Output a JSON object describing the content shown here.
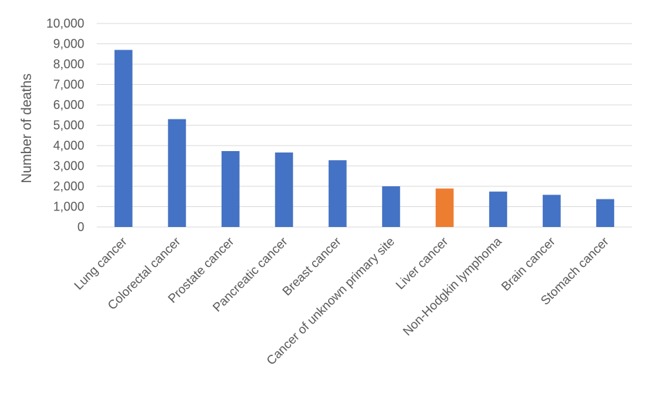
{
  "chart_data": {
    "type": "bar",
    "title": "",
    "xlabel": "",
    "ylabel": "Number of deaths",
    "ylim": [
      0,
      10000
    ],
    "yticks": [
      "0",
      "1,000",
      "2,000",
      "3,000",
      "4,000",
      "5,000",
      "6,000",
      "7,000",
      "8,000",
      "9,000",
      "10,000"
    ],
    "grid": true,
    "legend": "none",
    "categories": [
      "Lung cancer",
      "Colorectal cancer",
      "Prostate cancer",
      "Pancreatic cancer",
      "Breast cancer",
      "Cancer of unknown primary site",
      "Liver cancer",
      "Non-Hodgkin lymphoma",
      "Brain cancer",
      "Stomach cancer"
    ],
    "values": [
      8700,
      5300,
      3730,
      3660,
      3280,
      2000,
      1890,
      1740,
      1580,
      1370
    ],
    "colors": {
      "default": "#4472c4",
      "highlight": "#ed7d31"
    },
    "highlight_category": "Liver cancer"
  }
}
